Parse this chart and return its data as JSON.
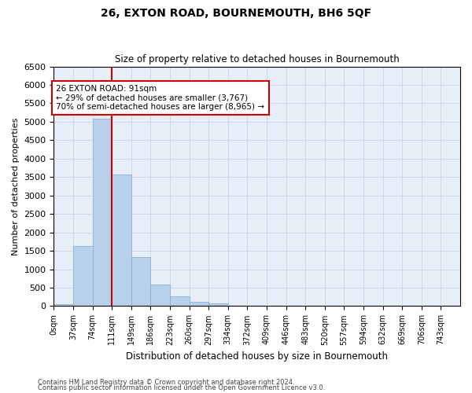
{
  "title": "26, EXTON ROAD, BOURNEMOUTH, BH6 5QF",
  "subtitle": "Size of property relative to detached houses in Bournemouth",
  "xlabel": "Distribution of detached houses by size in Bournemouth",
  "ylabel": "Number of detached properties",
  "footnote1": "Contains HM Land Registry data © Crown copyright and database right 2024.",
  "footnote2": "Contains public sector information licensed under the Open Government Licence v3.0.",
  "categories": [
    "0sqm",
    "37sqm",
    "74sqm",
    "111sqm",
    "149sqm",
    "186sqm",
    "223sqm",
    "260sqm",
    "297sqm",
    "334sqm",
    "372sqm",
    "409sqm",
    "446sqm",
    "483sqm",
    "520sqm",
    "557sqm",
    "594sqm",
    "632sqm",
    "669sqm",
    "706sqm",
    "743sqm"
  ],
  "values": [
    50,
    1620,
    5080,
    3560,
    1330,
    580,
    270,
    120,
    80,
    0,
    0,
    0,
    0,
    0,
    0,
    0,
    0,
    0,
    0,
    0,
    0
  ],
  "bar_color": "#b8d0ea",
  "bar_edge_color": "#7aadd4",
  "vline_color": "#cc0000",
  "vline_x_idx": 3,
  "ylim": [
    0,
    6500
  ],
  "yticks": [
    0,
    500,
    1000,
    1500,
    2000,
    2500,
    3000,
    3500,
    4000,
    4500,
    5000,
    5500,
    6000,
    6500
  ],
  "annotation_text": "26 EXTON ROAD: 91sqm\n← 29% of detached houses are smaller (3,767)\n70% of semi-detached houses are larger (8,965) →",
  "annotation_box_color": "#ffffff",
  "annotation_box_edge": "#cc0000",
  "grid_color": "#c8d4e4",
  "bg_color": "#e8eef8",
  "fig_width": 6.0,
  "fig_height": 5.0,
  "dpi": 100
}
